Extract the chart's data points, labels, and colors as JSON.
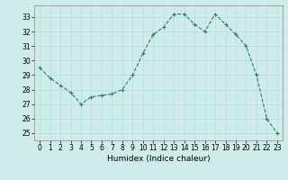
{
  "x": [
    0,
    1,
    2,
    3,
    4,
    5,
    6,
    7,
    8,
    9,
    10,
    11,
    12,
    13,
    14,
    15,
    16,
    17,
    18,
    19,
    20,
    21,
    22,
    23
  ],
  "y": [
    29.5,
    28.8,
    28.3,
    27.8,
    27.0,
    27.5,
    27.6,
    27.7,
    28.0,
    29.0,
    30.5,
    31.8,
    32.3,
    33.2,
    33.2,
    32.5,
    32.0,
    33.2,
    32.5,
    31.8,
    31.0,
    29.0,
    26.0,
    25.0
  ],
  "line_color": "#2e7d6e",
  "marker": "+",
  "bg_color": "#ceecea",
  "grid_color": "#b8ddd9",
  "xlabel": "Humidex (Indice chaleur)",
  "ylim": [
    24.5,
    33.8
  ],
  "xlim": [
    -0.5,
    23.5
  ],
  "yticks": [
    25,
    26,
    27,
    28,
    29,
    30,
    31,
    32,
    33
  ],
  "xticks": [
    0,
    1,
    2,
    3,
    4,
    5,
    6,
    7,
    8,
    9,
    10,
    11,
    12,
    13,
    14,
    15,
    16,
    17,
    18,
    19,
    20,
    21,
    22,
    23
  ],
  "label_fontsize": 6.5,
  "tick_fontsize": 5.5
}
